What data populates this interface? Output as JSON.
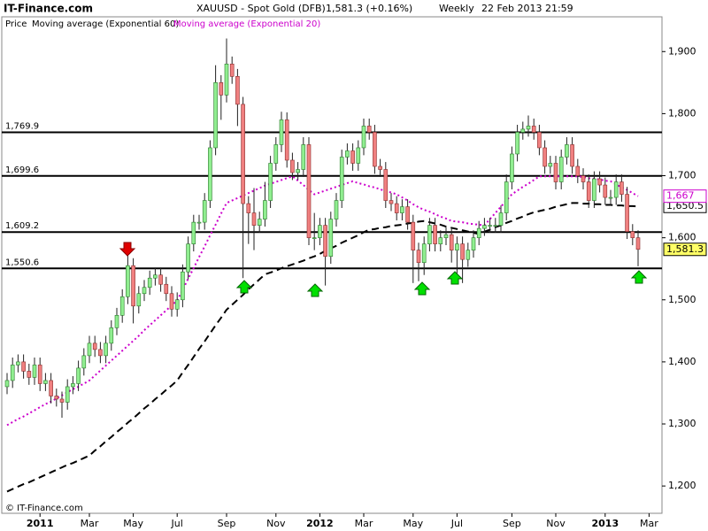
{
  "chart_data": {
    "type": "candlestick",
    "site": "IT-Finance.com",
    "title": "XAUUSD - Spot Gold (DFB)",
    "quote": "1,581.3 (+0.16%)",
    "period": "Weekly",
    "timestamp": "22 Feb 2013 21:59",
    "copyright": "© IT-Finance.com",
    "ylim": [
      1156,
      1956
    ],
    "yticks": [
      {
        "value": 1200,
        "label": "1,200"
      },
      {
        "value": 1300,
        "label": "1,300"
      },
      {
        "value": 1400,
        "label": "1,400"
      },
      {
        "value": 1500,
        "label": "1,500"
      },
      {
        "value": 1600,
        "label": "1,600"
      },
      {
        "value": 1700,
        "label": "1,700"
      },
      {
        "value": 1800,
        "label": "1,800"
      },
      {
        "value": 1900,
        "label": "1,900"
      }
    ],
    "categories": [
      null,
      null,
      null,
      null,
      null,
      null,
      "2011",
      null,
      null,
      null,
      null,
      null,
      null,
      null,
      null,
      "Mar",
      null,
      null,
      null,
      null,
      null,
      null,
      null,
      "May",
      null,
      null,
      null,
      null,
      null,
      null,
      null,
      "Jul",
      null,
      null,
      null,
      null,
      null,
      null,
      null,
      null,
      "Sep",
      null,
      null,
      null,
      null,
      null,
      null,
      null,
      null,
      "Nov",
      null,
      null,
      null,
      null,
      null,
      null,
      null,
      "2012",
      null,
      null,
      null,
      null,
      null,
      null,
      null,
      "Mar",
      null,
      null,
      null,
      null,
      null,
      null,
      null,
      null,
      "May",
      null,
      null,
      null,
      null,
      null,
      null,
      null,
      "Jul",
      null,
      null,
      null,
      null,
      null,
      null,
      null,
      null,
      null,
      "Sep",
      null,
      null,
      null,
      null,
      null,
      null,
      null,
      "Nov",
      null,
      null,
      null,
      null,
      null,
      null,
      null,
      null,
      "2013",
      null,
      null,
      null,
      null,
      null,
      null,
      null,
      "Mar"
    ],
    "series": [
      {
        "name": "Price",
        "color_up": "#90ee90",
        "color_down": "#f08080",
        "open": [
          1360,
          1370,
          1395,
          1400,
          1385,
          1375,
          1395,
          1365,
          1370,
          1345,
          1340,
          1335,
          1360,
          1365,
          1390,
          1410,
          1430,
          1420,
          1410,
          1430,
          1455,
          1475,
          1505,
          1555,
          1490,
          1510,
          1520,
          1535,
          1540,
          1525,
          1510,
          1485,
          1500,
          1545,
          1590,
          1625,
          1625,
          1660,
          1745,
          1850,
          1830,
          1880,
          1860,
          1815,
          1655,
          1640,
          1620,
          1630,
          1660,
          1720,
          1750,
          1790,
          1725,
          1705,
          1710,
          1750,
          1600,
          1600,
          1620,
          1570,
          1630,
          1660,
          1730,
          1740,
          1720,
          1745,
          1780,
          1770,
          1715,
          1710,
          1660,
          1655,
          1640,
          1650,
          1625,
          1580,
          1560,
          1590,
          1620,
          1590,
          1600,
          1605,
          1580,
          1590,
          1565,
          1580,
          1600,
          1615,
          1620,
          1620,
          1620,
          1640,
          1690,
          1735,
          1770,
          1775,
          1780,
          1770,
          1745,
          1715,
          1720,
          1690,
          1730,
          1750,
          1715,
          1700,
          1690,
          1660,
          1695,
          1685,
          1665,
          1665,
          1690,
          1670,
          1610,
          1600,
          null,
          null
        ],
        "high": [
          1382,
          1407,
          1412,
          1412,
          1397,
          1407,
          1407,
          1382,
          1382,
          1357,
          1352,
          1372,
          1377,
          1402,
          1422,
          1442,
          1442,
          1432,
          1442,
          1467,
          1487,
          1517,
          1577,
          1567,
          1522,
          1532,
          1547,
          1552,
          1552,
          1537,
          1522,
          1512,
          1557,
          1602,
          1637,
          1637,
          1672,
          1757,
          1878,
          1862,
          1921,
          1892,
          1872,
          1827,
          1667,
          1680,
          1642,
          1690,
          1732,
          1762,
          1803,
          1802,
          1737,
          1722,
          1762,
          1762,
          1640,
          1632,
          1632,
          1642,
          1672,
          1742,
          1752,
          1752,
          1757,
          1792,
          1792,
          1782,
          1727,
          1722,
          1672,
          1667,
          1662,
          1662,
          1637,
          1592,
          1602,
          1632,
          1632,
          1612,
          1617,
          1617,
          1602,
          1602,
          1592,
          1612,
          1627,
          1632,
          1632,
          1632,
          1652,
          1702,
          1747,
          1782,
          1787,
          1797,
          1792,
          1782,
          1757,
          1732,
          1732,
          1742,
          1762,
          1762,
          1727,
          1712,
          1702,
          1707,
          1707,
          1697,
          1677,
          1702,
          1702,
          1682,
          1622,
          1612,
          null,
          null
        ],
        "low": [
          1348,
          1358,
          1383,
          1373,
          1363,
          1363,
          1353,
          1353,
          1333,
          1328,
          1310,
          1323,
          1348,
          1353,
          1378,
          1398,
          1408,
          1398,
          1398,
          1418,
          1443,
          1463,
          1493,
          1462,
          1478,
          1498,
          1508,
          1523,
          1513,
          1498,
          1473,
          1473,
          1488,
          1533,
          1578,
          1613,
          1613,
          1648,
          1733,
          1790,
          1818,
          1848,
          1780,
          1535,
          1590,
          1580,
          1608,
          1618,
          1648,
          1708,
          1738,
          1713,
          1693,
          1693,
          1698,
          1588,
          1580,
          1588,
          1523,
          1558,
          1618,
          1648,
          1718,
          1708,
          1708,
          1733,
          1758,
          1703,
          1698,
          1648,
          1643,
          1628,
          1628,
          1613,
          1527,
          1530,
          1540,
          1578,
          1578,
          1578,
          1588,
          1560,
          1540,
          1527,
          1553,
          1568,
          1588,
          1603,
          1608,
          1608,
          1608,
          1628,
          1678,
          1723,
          1758,
          1763,
          1758,
          1733,
          1703,
          1703,
          1678,
          1678,
          1718,
          1703,
          1688,
          1678,
          1648,
          1648,
          1673,
          1653,
          1653,
          1653,
          1658,
          1598,
          1588,
          1554,
          null,
          null
        ],
        "close": [
          1370,
          1395,
          1400,
          1385,
          1375,
          1395,
          1365,
          1370,
          1345,
          1340,
          1335,
          1360,
          1365,
          1390,
          1410,
          1430,
          1420,
          1410,
          1430,
          1455,
          1475,
          1505,
          1555,
          1490,
          1510,
          1520,
          1535,
          1540,
          1525,
          1510,
          1485,
          1500,
          1545,
          1590,
          1625,
          1625,
          1660,
          1745,
          1850,
          1830,
          1880,
          1860,
          1815,
          1655,
          1640,
          1620,
          1630,
          1660,
          1720,
          1750,
          1790,
          1725,
          1705,
          1710,
          1750,
          1600,
          1600,
          1620,
          1570,
          1630,
          1660,
          1730,
          1740,
          1720,
          1745,
          1780,
          1770,
          1715,
          1710,
          1660,
          1655,
          1640,
          1650,
          1625,
          1580,
          1560,
          1590,
          1620,
          1590,
          1600,
          1605,
          1580,
          1590,
          1565,
          1580,
          1600,
          1615,
          1620,
          1620,
          1620,
          1640,
          1690,
          1735,
          1770,
          1775,
          1780,
          1770,
          1745,
          1715,
          1720,
          1690,
          1730,
          1750,
          1715,
          1700,
          1690,
          1660,
          1695,
          1685,
          1665,
          1665,
          1690,
          1670,
          1610,
          1600,
          1581.3,
          null,
          null
        ]
      },
      {
        "name": "Moving average (Exponential 60)",
        "color": "#000000",
        "style": "dashed",
        "values": [
          1191,
          1195,
          1199,
          1203,
          1206,
          1210,
          1214,
          1218,
          1222,
          1226,
          1230,
          1234,
          1237,
          1241,
          1245,
          1249,
          1257,
          1264,
          1272,
          1279,
          1287,
          1294,
          1302,
          1309,
          1317,
          1325,
          1332,
          1340,
          1347,
          1355,
          1362,
          1370,
          1383,
          1395,
          1408,
          1421,
          1433,
          1446,
          1459,
          1471,
          1484,
          1492,
          1500,
          1508,
          1517,
          1525,
          1533,
          1541,
          1544,
          1547,
          1551,
          1554,
          1557,
          1560,
          1563,
          1567,
          1570,
          1574,
          1579,
          1583,
          1587,
          1592,
          1596,
          1600,
          1604,
          1609,
          1613,
          1614,
          1616,
          1617,
          1619,
          1620,
          1621,
          1623,
          1624,
          1626,
          1627,
          1625,
          1623,
          1621,
          1618,
          1616,
          1614,
          1612,
          1610,
          1608,
          1606,
          1610,
          1613,
          1617,
          1620,
          1624,
          1627,
          1631,
          1634,
          1638,
          1641,
          1643,
          1645,
          1647,
          1650,
          1652,
          1654,
          1656,
          1656,
          1655,
          1655,
          1654,
          1654,
          1653,
          1653,
          1652,
          1652,
          1651,
          1651,
          1650.5,
          null,
          null
        ]
      },
      {
        "name": "Moving average (Exponential 20)",
        "color": "#cc00cc",
        "style": "dotted",
        "values": [
          1298,
          1303,
          1308,
          1312,
          1317,
          1322,
          1327,
          1332,
          1336,
          1341,
          1346,
          1351,
          1356,
          1360,
          1365,
          1370,
          1378,
          1386,
          1394,
          1402,
          1410,
          1418,
          1426,
          1434,
          1442,
          1451,
          1459,
          1467,
          1475,
          1483,
          1491,
          1499,
          1516,
          1534,
          1551,
          1569,
          1586,
          1604,
          1621,
          1639,
          1656,
          1660,
          1664,
          1668,
          1672,
          1676,
          1680,
          1684,
          1687,
          1690,
          1693,
          1696,
          1699,
          1692,
          1685,
          1677,
          1670,
          1673,
          1676,
          1679,
          1682,
          1685,
          1688,
          1691,
          1688,
          1686,
          1683,
          1681,
          1678,
          1675,
          1673,
          1670,
          1665,
          1660,
          1654,
          1649,
          1645,
          1642,
          1638,
          1634,
          1631,
          1627,
          1626,
          1625,
          1623,
          1622,
          1621,
          1620,
          1630,
          1640,
          1650,
          1660,
          1670,
          1676,
          1682,
          1687,
          1693,
          1699,
          1699,
          1699,
          1699,
          1699,
          1699,
          1699,
          1699,
          1698,
          1696,
          1695,
          1694,
          1692,
          1691,
          1686,
          1681,
          1677,
          1672,
          1667,
          null,
          null
        ]
      }
    ],
    "levels": [
      {
        "value": 1769.9,
        "label": "1,769.9"
      },
      {
        "value": 1699.6,
        "label": "1,699.6"
      },
      {
        "value": 1609.2,
        "label": "1,609.2"
      },
      {
        "value": 1550.6,
        "label": "1,550.6"
      }
    ],
    "price_tags": [
      {
        "value": 1650.5,
        "label": "1,650.5",
        "color": "#ffffff",
        "text_color": "#000000"
      },
      {
        "value": 1667,
        "label": "1,667",
        "color": "#ffffff",
        "text_color": "#cc00cc"
      },
      {
        "value": 1581.3,
        "label": "1,581.3",
        "color": "#ffff66",
        "text_color": "#000000"
      }
    ]
  }
}
